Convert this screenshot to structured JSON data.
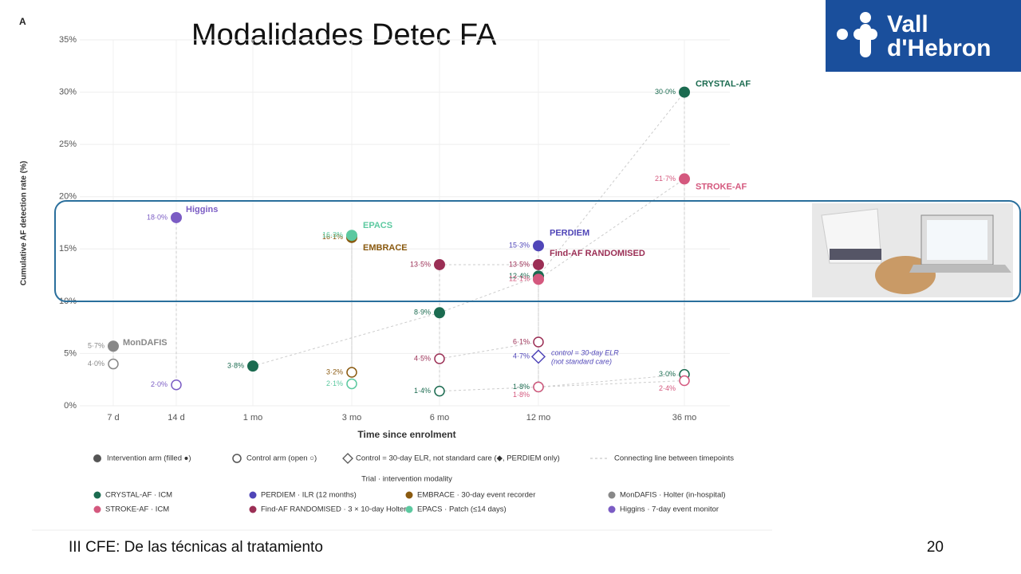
{
  "slide": {
    "title": "Modalidades Detec FA",
    "footer": "III CFE: De las técnicas al tratamiento",
    "page_number": "20",
    "logo": [
      "Vall",
      "d'Hebron"
    ]
  },
  "chart_data": {
    "type": "dot",
    "panel": "A",
    "y_label": "Cumulative AF detection rate (%)",
    "x_label": "Time since enrolment",
    "categories": [
      "7 d",
      "14 d",
      "1 mo",
      "3 mo",
      "6 mo",
      "12 mo",
      "36 mo"
    ],
    "ylim": [
      0,
      35
    ],
    "yticks": [
      {
        "value": 0,
        "label": "0%"
      },
      {
        "value": 5,
        "label": "5%"
      },
      {
        "value": 10,
        "label": "10%"
      },
      {
        "value": 15,
        "label": "15%"
      },
      {
        "value": 20,
        "label": "20%"
      },
      {
        "value": 25,
        "label": "25%"
      },
      {
        "value": 30,
        "label": "30%"
      },
      {
        "value": 35,
        "label": "35%"
      }
    ],
    "grid": true,
    "series": [
      {
        "name": "CRYSTAL-AF · ICM",
        "label": "CRYSTAL-AF",
        "color": "#1b6b50",
        "values": [
          null,
          null,
          3.8,
          null,
          8.9,
          12.4,
          30.0
        ],
        "value_labels": [
          null,
          null,
          "3·8%",
          null,
          "8·9%",
          "12·4%",
          "30·0%"
        ],
        "control_values": [
          null,
          null,
          null,
          null,
          1.4,
          1.8,
          3.0
        ],
        "control_value_labels": [
          null,
          null,
          null,
          null,
          "1·4%",
          "1·8%",
          "3·0%"
        ]
      },
      {
        "name": "STROKE-AF · ICM",
        "label": "STROKE-AF",
        "color": "#d4587e",
        "values": [
          null,
          null,
          null,
          null,
          null,
          12.1,
          21.7
        ],
        "value_labels": [
          null,
          null,
          null,
          null,
          null,
          "12·1%",
          "21·7%"
        ],
        "control_values": [
          null,
          null,
          null,
          null,
          null,
          1.8,
          2.4
        ],
        "control_value_labels": [
          null,
          null,
          null,
          null,
          null,
          "1·8%",
          "2·4%"
        ]
      },
      {
        "name": "PERDIEM · ILR (12 months)",
        "label": "PERDIEM",
        "color": "#5046b8",
        "values": [
          null,
          null,
          null,
          null,
          null,
          15.3,
          null
        ],
        "value_labels": [
          null,
          null,
          null,
          null,
          null,
          "15·3%",
          null
        ],
        "control_values": [
          null,
          null,
          null,
          null,
          null,
          4.7,
          null
        ],
        "control_value_labels": [
          null,
          null,
          null,
          null,
          null,
          "4·7%",
          null
        ],
        "control_marker": "diamond"
      },
      {
        "name": "Find-AF RANDOMISED · 3 × 10-day Holter",
        "label": "Find-AF RANDOMISED",
        "color": "#9b2f55",
        "values": [
          null,
          null,
          null,
          null,
          13.5,
          13.5,
          null
        ],
        "value_labels": [
          null,
          null,
          null,
          null,
          "13·5%",
          "13·5%",
          null
        ],
        "control_values": [
          null,
          null,
          null,
          null,
          4.5,
          6.1,
          null
        ],
        "control_value_labels": [
          null,
          null,
          null,
          null,
          "4·5%",
          "6·1%",
          null
        ]
      },
      {
        "name": "EMBRACE · 30-day event recorder",
        "label": "EMBRACE",
        "color": "#8a5a10",
        "values": [
          null,
          null,
          null,
          16.1,
          null,
          null,
          null
        ],
        "value_labels": [
          null,
          null,
          null,
          "16·1%",
          null,
          null,
          null
        ],
        "control_values": [
          null,
          null,
          null,
          3.2,
          null,
          null,
          null
        ],
        "control_value_labels": [
          null,
          null,
          null,
          "3·2%",
          null,
          null,
          null
        ]
      },
      {
        "name": "EPACS · Patch (≤14 days)",
        "label": "EPACS",
        "color": "#5cc9a0",
        "values": [
          null,
          null,
          null,
          16.3,
          null,
          null,
          null
        ],
        "value_labels": [
          null,
          null,
          null,
          "16·3%",
          null,
          null,
          null
        ],
        "control_values": [
          null,
          null,
          null,
          2.1,
          null,
          null,
          null
        ],
        "control_value_labels": [
          null,
          null,
          null,
          "2·1%",
          null,
          null,
          null
        ]
      },
      {
        "name": "MonDAFIS · Holter (in-hospital)",
        "label": "MonDAFIS",
        "color": "#888888",
        "values": [
          5.7,
          null,
          null,
          null,
          null,
          null,
          null
        ],
        "value_labels": [
          "5·7%",
          null,
          null,
          null,
          null,
          null,
          null
        ],
        "control_values": [
          4.0,
          null,
          null,
          null,
          null,
          null,
          null
        ],
        "control_value_labels": [
          "4·0%",
          null,
          null,
          null,
          null,
          null,
          null
        ]
      },
      {
        "name": "Higgins · 7-day event monitor",
        "label": "Higgins",
        "color": "#7b5cc4",
        "values": [
          null,
          18.0,
          null,
          null,
          null,
          null,
          null
        ],
        "value_labels": [
          null,
          "18·0%",
          null,
          null,
          null,
          null,
          null
        ],
        "control_values": [
          null,
          2.0,
          null,
          null,
          null,
          null,
          null
        ],
        "control_value_labels": [
          null,
          "2·0%",
          null,
          null,
          null,
          null,
          null
        ]
      }
    ],
    "annotation": [
      "control = 30-day ELR",
      "(not standard care)"
    ],
    "legend_keys": [
      "Intervention arm (filled ●)",
      "Control arm (open ○)",
      "Control = 30-day ELR, not standard care (◆, PERDIEM only)",
      "Connecting line between timepoints"
    ],
    "legend_title": "Trial · intervention modality"
  }
}
